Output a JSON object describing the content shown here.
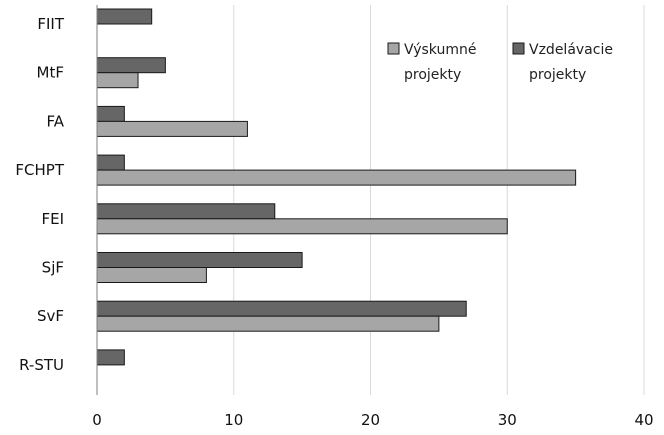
{
  "chart_data": {
    "type": "bar",
    "orientation": "horizontal",
    "categories": [
      "FIIT",
      "MtF",
      "FA",
      "FCHPT",
      "FEI",
      "SjF",
      "SvF",
      "R-STU"
    ],
    "series": [
      {
        "name": "Vzdelávacie projekty",
        "color": "#666666",
        "values": [
          4,
          5,
          2,
          2,
          13,
          15,
          27,
          2
        ]
      },
      {
        "name": "Výskumné projekty",
        "color": "#a6a6a6",
        "values": [
          0,
          3,
          11,
          35,
          30,
          8,
          25,
          0
        ]
      }
    ],
    "xlim": [
      0,
      40
    ],
    "xticks": [
      0,
      10,
      20,
      30,
      40
    ],
    "grid": true,
    "legend_position": "top-right",
    "legend": [
      {
        "label_line1": "Výskumné",
        "label_line2": "projekty",
        "color": "#a6a6a6"
      },
      {
        "label_line1": "Vzdelávacie",
        "label_line2": "projekty",
        "color": "#666666"
      }
    ]
  }
}
